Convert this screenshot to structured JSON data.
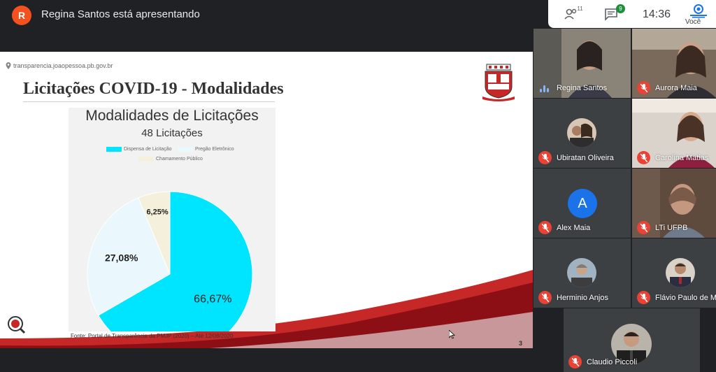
{
  "topbar": {
    "presenter_initial": "R",
    "presenter_text": "Regina Santos está apresentando",
    "people_count": "11",
    "chat_count": "9",
    "time": "14:36",
    "self_label": "Você",
    "icons": [
      "people-icon",
      "chat-icon"
    ]
  },
  "slide": {
    "url": "transparencia.joaopessoa.pb.gov.br",
    "title": "Licitações COVID-19 - Modalidades",
    "source": "Fonte: Portal de Transparência da PMJP (2020) – Até 12/08/2020",
    "page_number": "3"
  },
  "chart_data": {
    "type": "pie",
    "title": "Modalidades de Licitações",
    "subtitle": "48 Licitações",
    "legend_position": "top",
    "series": [
      {
        "name": "Dispensa de Licitação",
        "value": 66.67,
        "label": "66,67%",
        "color": "#00e5ff"
      },
      {
        "name": "Pregão Eletrônico",
        "value": 27.08,
        "label": "27,08%",
        "color": "#eaf8fd"
      },
      {
        "name": "Chamamento Público",
        "value": 6.25,
        "label": "6,25%",
        "color": "#f5f0dc"
      }
    ]
  },
  "participants": [
    {
      "name": "Regina Santos",
      "muted": false,
      "kind": "video"
    },
    {
      "name": "Aurora Maia",
      "muted": true,
      "kind": "video"
    },
    {
      "name": "Ubiratan Oliveira",
      "muted": true,
      "kind": "photo"
    },
    {
      "name": "Carolina Matias",
      "muted": true,
      "kind": "video"
    },
    {
      "name": "Alex Maia",
      "muted": true,
      "kind": "letter",
      "initial": "A"
    },
    {
      "name": "LTi UFPB",
      "muted": true,
      "kind": "video"
    },
    {
      "name": "Herminio Anjos",
      "muted": true,
      "kind": "photo"
    },
    {
      "name": "Flávio Paulo de M",
      "muted": true,
      "kind": "photo"
    },
    {
      "name": "Claudio Piccoli",
      "muted": true,
      "kind": "photo"
    }
  ],
  "colors": {
    "accent_red": "#b71c1c",
    "mic_off": "#ea4335",
    "presenter": "#f4511e"
  }
}
